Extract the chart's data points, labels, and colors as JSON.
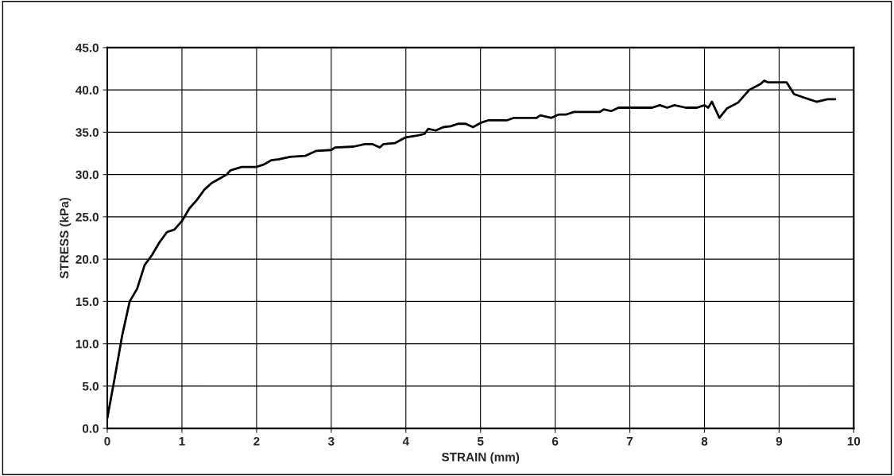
{
  "chart_data": {
    "type": "line",
    "xlabel": "STRAIN (mm)",
    "ylabel": "STRESS (kPa)",
    "xlim": [
      0,
      10
    ],
    "xticks": [
      0,
      1,
      2,
      3,
      4,
      5,
      6,
      7,
      8,
      9,
      10
    ],
    "ylim": [
      0,
      45
    ],
    "yticks": [
      {
        "value": 0,
        "label": "0.0"
      },
      {
        "value": 5,
        "label": "5.0"
      },
      {
        "value": 10,
        "label": "10.0"
      },
      {
        "value": 15,
        "label": "15.0"
      },
      {
        "value": 20,
        "label": "20.0"
      },
      {
        "value": 25,
        "label": "25.0"
      },
      {
        "value": 30,
        "label": "30.0"
      },
      {
        "value": 35,
        "label": "35.0"
      },
      {
        "value": 40,
        "label": "40.0"
      },
      {
        "value": 45,
        "label": "45.0"
      }
    ],
    "grid": true,
    "marker": "none",
    "line_style": "solid",
    "series": [
      {
        "color": "#000000",
        "x": [
          0,
          0.1,
          0.2,
          0.3,
          0.4,
          0.5,
          0.6,
          0.7,
          0.8,
          0.9,
          1.0,
          1.1,
          1.2,
          1.3,
          1.4,
          1.5,
          1.6,
          1.65,
          1.8,
          2.0,
          2.1,
          2.2,
          2.3,
          2.45,
          2.65,
          2.8,
          3.0,
          3.05,
          3.3,
          3.45,
          3.55,
          3.65,
          3.7,
          3.85,
          4.0,
          4.15,
          4.25,
          4.3,
          4.4,
          4.5,
          4.6,
          4.7,
          4.8,
          4.9,
          5.0,
          5.1,
          5.35,
          5.45,
          5.75,
          5.8,
          5.95,
          6.05,
          6.15,
          6.25,
          6.6,
          6.65,
          6.75,
          6.85,
          7.3,
          7.4,
          7.5,
          7.6,
          7.75,
          7.9,
          8.0,
          8.05,
          8.1,
          8.2,
          8.3,
          8.45,
          8.6,
          8.75,
          8.8,
          8.85,
          9.1,
          9.2,
          9.4,
          9.5,
          9.65,
          9.75
        ],
        "values": [
          1.2,
          6,
          11,
          15,
          16.5,
          19.3,
          20.5,
          22,
          23.2,
          23.5,
          24.5,
          26,
          27,
          28.2,
          29,
          29.5,
          30,
          30.5,
          30.9,
          30.9,
          31.2,
          31.7,
          31.8,
          32.1,
          32.2,
          32.8,
          32.9,
          33.2,
          33.3,
          33.6,
          33.6,
          33.2,
          33.6,
          33.7,
          34.4,
          34.6,
          34.8,
          35.4,
          35.2,
          35.6,
          35.7,
          36.0,
          36.0,
          35.6,
          36.1,
          36.4,
          36.4,
          36.7,
          36.7,
          37.0,
          36.7,
          37.1,
          37.1,
          37.4,
          37.4,
          37.7,
          37.5,
          37.9,
          37.9,
          38.2,
          37.9,
          38.2,
          37.9,
          37.9,
          38.2,
          37.9,
          38.6,
          36.7,
          37.8,
          38.5,
          40.0,
          40.7,
          41.1,
          40.9,
          40.9,
          39.5,
          38.9,
          38.6,
          38.9,
          38.9
        ]
      }
    ]
  }
}
